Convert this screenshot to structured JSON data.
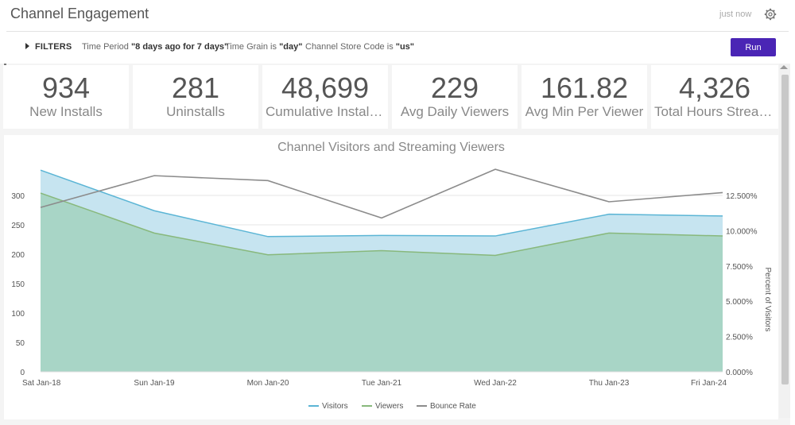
{
  "header": {
    "title": "Channel Engagement",
    "updated": "just now",
    "settings_icon": "gear-icon"
  },
  "filters": {
    "toggle_label": "FILTERS",
    "toggle_icon": "caret-right-icon",
    "items": [
      {
        "field": "Time Period",
        "op": " ",
        "value": "\"8 days ago for 7 days\""
      },
      {
        "field": "Time Grain",
        "op": " is ",
        "value": "\"day\""
      },
      {
        "field": "Channel Store Code",
        "op": " is ",
        "value": "\"us\""
      }
    ],
    "run_label": "Run",
    "run_color": "#4a25b5"
  },
  "tiles": [
    {
      "value": "934",
      "label": "New Installs"
    },
    {
      "value": "281",
      "label": "Uninstalls"
    },
    {
      "value": "48,699",
      "label": "Cumulative Installs..."
    },
    {
      "value": "229",
      "label": "Avg Daily Viewers"
    },
    {
      "value": "161.82",
      "label": "Avg Min Per Viewer"
    },
    {
      "value": "4,326",
      "label": "Total Hours Stream..."
    }
  ],
  "chart_data": {
    "type": "area",
    "title": "Channel Visitors and Streaming Viewers",
    "categories": [
      "Sat Jan-18",
      "Sun Jan-19",
      "Mon Jan-20",
      "Tue Jan-21",
      "Wed Jan-22",
      "Thu Jan-23",
      "Fri Jan-24"
    ],
    "y_ticks": [
      "0",
      "50",
      "100",
      "150",
      "200",
      "250",
      "300"
    ],
    "ylim": [
      0,
      300
    ],
    "y2_ticks": [
      "0.000%",
      "2.500%",
      "5.000%",
      "7.500%",
      "10.000%",
      "12.500%"
    ],
    "y2lim": [
      0,
      12.5
    ],
    "y2label": "Percent of Visitors",
    "grid": true,
    "legend_position": "bottom",
    "series": [
      {
        "name": "Visitors",
        "type": "area",
        "color": "#5bb5d5",
        "fill": "#c3e3ef",
        "axis": "left",
        "values": [
          343,
          274,
          230,
          232,
          231,
          268,
          265
        ]
      },
      {
        "name": "Viewers",
        "type": "area",
        "color": "#88b87c",
        "fill": "#a7d4c3",
        "axis": "left",
        "values": [
          304,
          236,
          199,
          206,
          198,
          236,
          231
        ]
      },
      {
        "name": "Bounce Rate",
        "type": "line",
        "color": "#8c8c8c",
        "axis": "right",
        "values": [
          11.65,
          13.9,
          13.55,
          10.9,
          14.35,
          12.05,
          12.7
        ]
      }
    ]
  }
}
